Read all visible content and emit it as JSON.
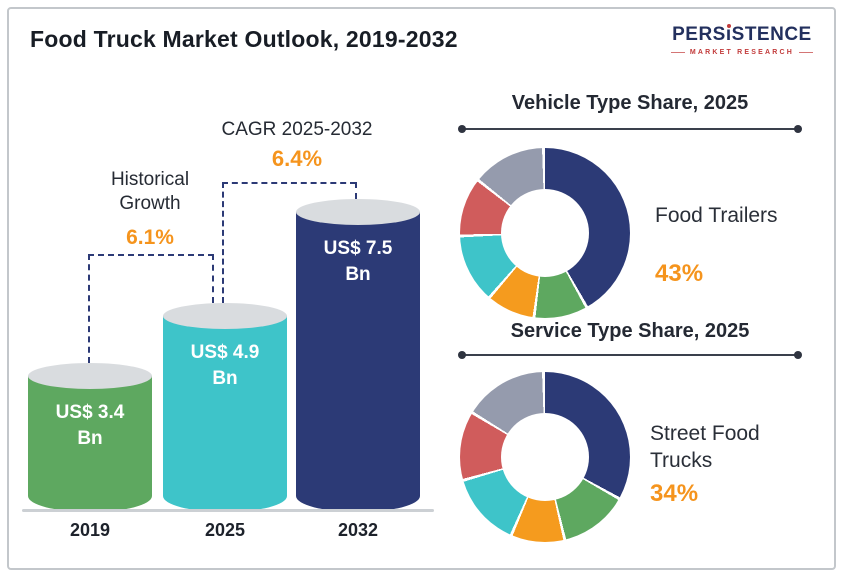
{
  "header": {
    "title": "Food Truck Market Outlook, 2019-2032"
  },
  "logo": {
    "wordmark_pre": "PERS",
    "wordmark_i": "ı",
    "wordmark_post": "STENCE",
    "tagline": "MARKET RESEARCH"
  },
  "colors": {
    "navy": "#2c3a76",
    "green": "#5ea860",
    "teal": "#3ec4c9",
    "orange": "#f59b1e",
    "red": "#d05c5c",
    "gray": "#959bad",
    "accent_orange": "#f5941d"
  },
  "chart_data": [
    {
      "type": "bar",
      "title": "Food Truck Market Outlook, 2019-2032",
      "categories": [
        "2019",
        "2025",
        "2032"
      ],
      "values": [
        3.4,
        4.9,
        7.5
      ],
      "bar_labels": [
        "US$ 3.4 Bn",
        "US$ 4.9 Bn",
        "US$ 7.5 Bn"
      ],
      "colors": [
        "#5ea860",
        "#3ec4c9",
        "#2c3a76"
      ],
      "ylim": [
        0,
        7.5
      ],
      "annotations": [
        {
          "label": "Historical Growth",
          "value": "6.1%",
          "from": "2019",
          "to": "2025"
        },
        {
          "label": "CAGR 2025-2032",
          "value": "6.4%",
          "from": "2025",
          "to": "2032"
        }
      ]
    },
    {
      "type": "pie",
      "title": "Vehicle Type Share, 2025",
      "callout": {
        "label": "Food Trailers",
        "value": "43%"
      },
      "legend_position": "none",
      "segments": [
        {
          "name": "Food Trailers",
          "value": 43,
          "color": "#2c3a76"
        },
        {
          "name": "green-segment",
          "value": 10,
          "color": "#5ea860"
        },
        {
          "name": "orange-segment",
          "value": 9,
          "color": "#f59b1e"
        },
        {
          "name": "teal-segment",
          "value": 13,
          "color": "#3ec4c9"
        },
        {
          "name": "red-segment",
          "value": 11,
          "color": "#d05c5c"
        },
        {
          "name": "gray-segment",
          "value": 14,
          "color": "#959bad"
        }
      ]
    },
    {
      "type": "pie",
      "title": "Service Type Share, 2025",
      "callout": {
        "label": "Street Food Trucks",
        "value": "34%"
      },
      "legend_position": "none",
      "segments": [
        {
          "name": "Street Food Trucks",
          "value": 34,
          "color": "#2c3a76"
        },
        {
          "name": "green-segment",
          "value": 13,
          "color": "#5ea860"
        },
        {
          "name": "orange-segment",
          "value": 10,
          "color": "#f59b1e"
        },
        {
          "name": "teal-segment",
          "value": 14,
          "color": "#3ec4c9"
        },
        {
          "name": "red-segment",
          "value": 13,
          "color": "#d05c5c"
        },
        {
          "name": "gray-segment",
          "value": 16,
          "color": "#959bad"
        }
      ]
    }
  ]
}
